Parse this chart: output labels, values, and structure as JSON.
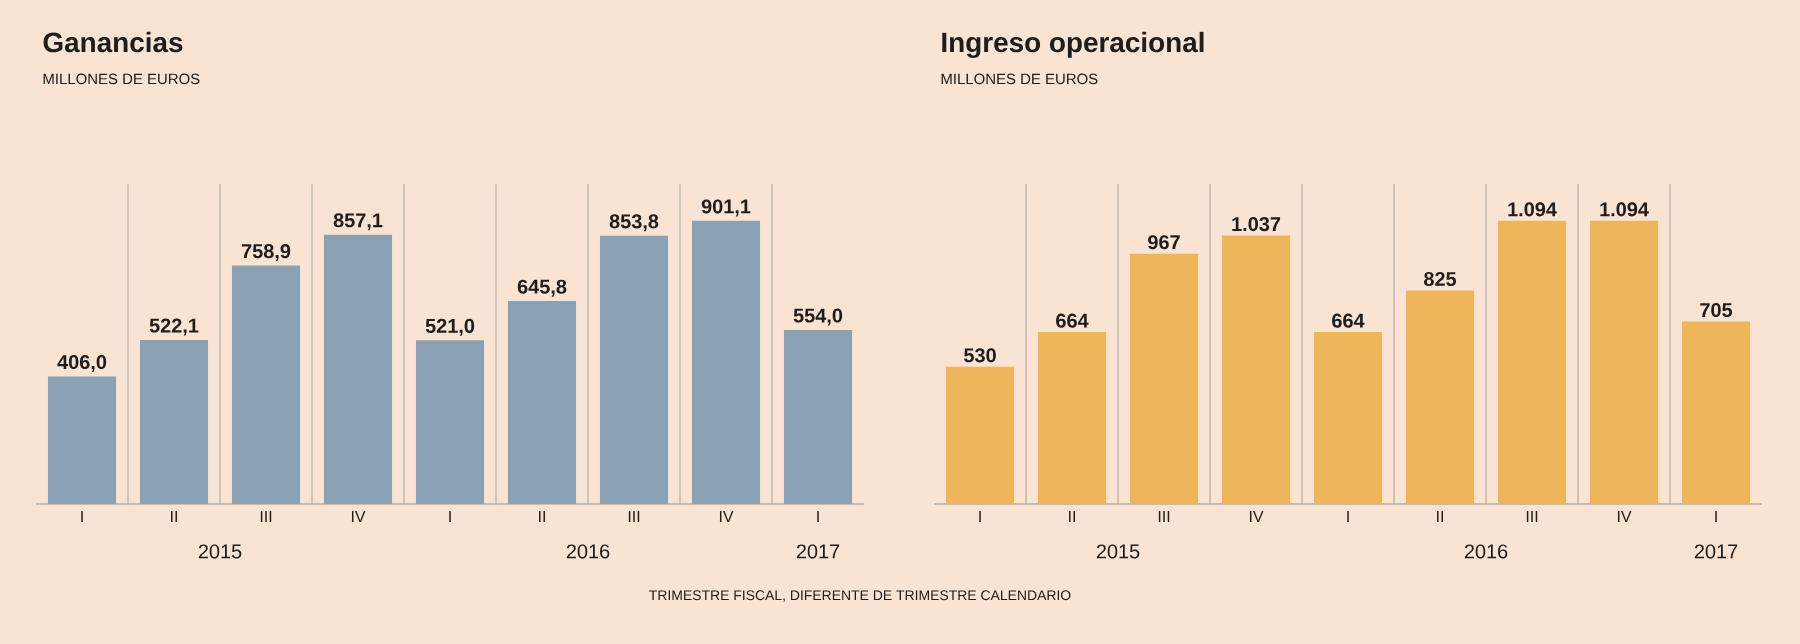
{
  "chart_data": [
    {
      "type": "bar",
      "title": "Ganancias",
      "subtitle": "MILLONES DE EUROS",
      "categories": [
        "I",
        "II",
        "III",
        "IV",
        "I",
        "II",
        "III",
        "IV",
        "I"
      ],
      "values": [
        406.0,
        522.1,
        758.9,
        857.1,
        521.0,
        645.8,
        853.8,
        901.1,
        554.0
      ],
      "value_labels": [
        "406,0",
        "522,1",
        "758,9",
        "857,1",
        "521,0",
        "645,8",
        "853,8",
        "901,1",
        "554,0"
      ],
      "color": "#8aa1b4",
      "annotations": [
        "2015",
        "2016",
        "2017",
        "TRIMESTRE FISCAL, DIFERENTE DE TRIMESTRE CALENDARIO"
      ]
    },
    {
      "type": "bar",
      "title": "Ingreso operacional",
      "subtitle": "MILLONES DE EUROS",
      "categories": [
        "I",
        "II",
        "III",
        "IV",
        "I",
        "II",
        "III",
        "IV",
        "I"
      ],
      "values": [
        530,
        664,
        967,
        1037,
        664,
        825,
        1094,
        1094,
        705
      ],
      "value_labels": [
        "530",
        "664",
        "967",
        "1.037",
        "664",
        "825",
        "1.094",
        "1.094",
        "705"
      ],
      "color": "#efb55a",
      "annotations": [
        "2015",
        "2016",
        "2017"
      ]
    }
  ]
}
